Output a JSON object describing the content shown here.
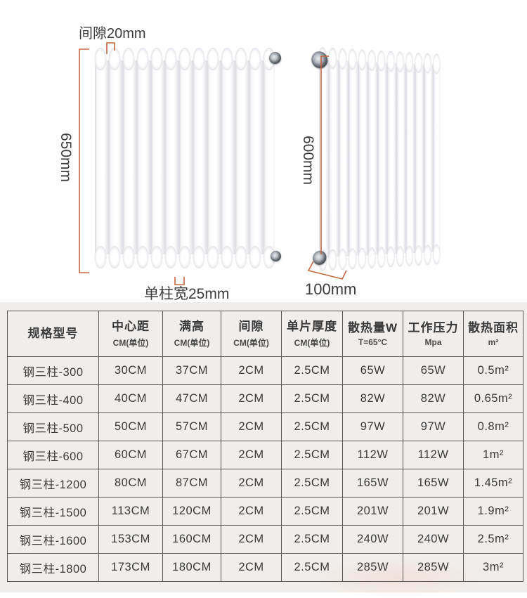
{
  "diagram": {
    "front": {
      "gap_label": "间隙20mm",
      "height_label": "650mm",
      "column_width_label": "单柱宽25mm"
    },
    "side": {
      "height_label": "600mm",
      "depth_label": "100mm"
    }
  },
  "table": {
    "columns": [
      {
        "title": "规格型号",
        "sub": ""
      },
      {
        "title": "中心距",
        "sub": "CM(单位)"
      },
      {
        "title": "满高",
        "sub": "CM(单位)"
      },
      {
        "title": "间隙",
        "sub": "CM(单位)"
      },
      {
        "title": "单片厚度",
        "sub": "CM(单位)"
      },
      {
        "title": "散热量W",
        "sub": "T=65°C"
      },
      {
        "title": "工作压力",
        "sub": "Mpa"
      },
      {
        "title": "散热面积",
        "sub": "m²"
      }
    ],
    "rows": [
      [
        "钢三柱-300",
        "30CM",
        "37CM",
        "2CM",
        "2.5CM",
        "65W",
        "65W",
        "0.5m²"
      ],
      [
        "钢三柱-400",
        "40CM",
        "47CM",
        "2CM",
        "2.5CM",
        "82W",
        "82W",
        "0.65m²"
      ],
      [
        "钢三柱-500",
        "50CM",
        "57CM",
        "2CM",
        "2.5CM",
        "97W",
        "97W",
        "0.8m²"
      ],
      [
        "钢三柱-600",
        "60CM",
        "67CM",
        "2CM",
        "2.5CM",
        "112W",
        "112W",
        "1m²"
      ],
      [
        "钢三柱-1200",
        "80CM",
        "87CM",
        "2CM",
        "2.5CM",
        "165W",
        "165W",
        "1.45m²"
      ],
      [
        "钢三柱-1500",
        "113CM",
        "120CM",
        "2CM",
        "2.5CM",
        "201W",
        "201W",
        "1.9m²"
      ],
      [
        "钢三柱-1600",
        "153CM",
        "160CM",
        "2CM",
        "2.5CM",
        "240W",
        "240W",
        "2.5m²"
      ],
      [
        "钢三柱-1800",
        "173CM",
        "180CM",
        "2CM",
        "2.5CM",
        "285W",
        "285W",
        "3m²"
      ]
    ]
  },
  "colors": {
    "dimension_line": "#c4663e",
    "table_border": "#565656",
    "text": "#3a3a3a",
    "table_section_bg": "#f0eeec"
  }
}
